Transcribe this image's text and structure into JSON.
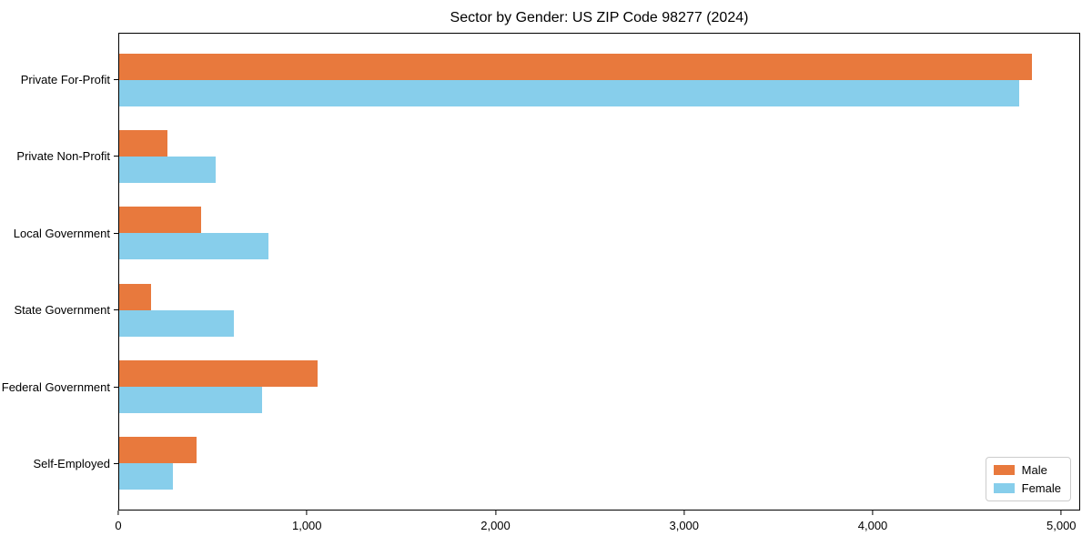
{
  "chart_data": {
    "type": "bar",
    "orientation": "horizontal",
    "title": "Sector by Gender: US ZIP Code 98277 (2024)",
    "categories": [
      "Private For-Profit",
      "Private Non-Profit",
      "Local Government",
      "State Government",
      "Federal Government",
      "Self-Employed"
    ],
    "series": [
      {
        "name": "Male",
        "color": "#E8793D",
        "values": [
          4850,
          255,
          435,
          170,
          1055,
          410
        ]
      },
      {
        "name": "Female",
        "color": "#87CEEB",
        "values": [
          4780,
          510,
          795,
          610,
          760,
          285
        ]
      }
    ],
    "xlabel": "",
    "ylabel": "",
    "xlim": [
      0,
      5100
    ],
    "xticks": [
      {
        "value": 0,
        "label": "0"
      },
      {
        "value": 1000,
        "label": "1,000"
      },
      {
        "value": 2000,
        "label": "2,000"
      },
      {
        "value": 3000,
        "label": "3,000"
      },
      {
        "value": 4000,
        "label": "4,000"
      },
      {
        "value": 5000,
        "label": "5,000"
      }
    ],
    "grid": false,
    "legend": {
      "position": "lower right"
    }
  }
}
